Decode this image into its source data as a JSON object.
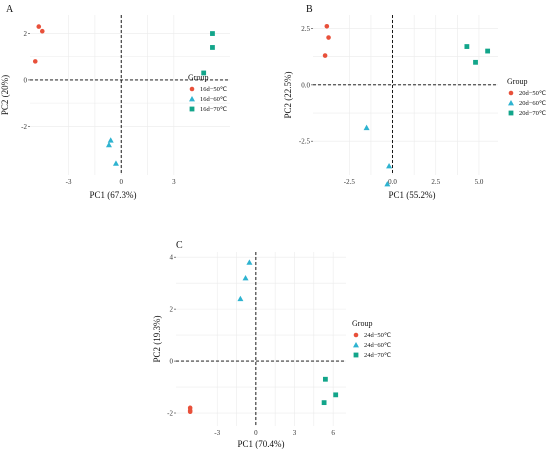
{
  "colors": {
    "c50": "#e8503a",
    "c60": "#2eb3d0",
    "c70": "#12a58a"
  },
  "chart_data": [
    {
      "type": "scatter",
      "panel": "A",
      "xlabel": "PC1 (67.3%)",
      "ylabel": "PC2 (20%)",
      "xlim": [
        -5.2,
        6.2
      ],
      "ylim": [
        -4.1,
        2.8
      ],
      "xticks": [
        -3,
        0,
        3
      ],
      "yticks": [
        -2,
        0,
        2
      ],
      "legend_title": "Group",
      "legend_position": "right",
      "series": [
        {
          "name": "16d−50℃",
          "marker": "circle",
          "color": "#e8503a",
          "points": [
            [
              -4.7,
              2.3
            ],
            [
              -4.5,
              2.1
            ],
            [
              -4.9,
              0.8
            ]
          ]
        },
        {
          "name": "16d−60℃",
          "marker": "triangle",
          "color": "#2eb3d0",
          "points": [
            [
              -0.6,
              -2.6
            ],
            [
              -0.7,
              -2.8
            ],
            [
              -0.3,
              -3.6
            ]
          ]
        },
        {
          "name": "16d−70℃",
          "marker": "square",
          "color": "#12a58a",
          "points": [
            [
              5.2,
              2.0
            ],
            [
              5.2,
              1.4
            ],
            [
              4.7,
              0.3
            ]
          ]
        }
      ]
    },
    {
      "type": "scatter",
      "panel": "B",
      "xlabel": "PC1 (55.2%)",
      "ylabel": "PC2 (22.5%)",
      "xlim": [
        -4.6,
        6.1
      ],
      "ylim": [
        -4.0,
        3.1
      ],
      "xticks": [
        -2.5,
        0.0,
        2.5,
        5.0
      ],
      "xtick_labels": [
        "-2.5",
        "0.0",
        "2.5",
        "5.0"
      ],
      "yticks": [
        -2.5,
        0.0,
        2.5
      ],
      "ytick_labels": [
        "-2.5",
        "0.0",
        "2.5"
      ],
      "legend_title": "Group",
      "legend_position": "right",
      "series": [
        {
          "name": "20d−50℃",
          "marker": "circle",
          "color": "#e8503a",
          "points": [
            [
              -3.8,
              2.6
            ],
            [
              -3.7,
              2.1
            ],
            [
              -3.9,
              1.3
            ]
          ]
        },
        {
          "name": "20d−60℃",
          "marker": "triangle",
          "color": "#2eb3d0",
          "points": [
            [
              -1.5,
              -1.9
            ],
            [
              -0.2,
              -3.6
            ],
            [
              -0.3,
              -4.4
            ]
          ]
        },
        {
          "name": "20d−70℃",
          "marker": "square",
          "color": "#12a58a",
          "points": [
            [
              4.3,
              1.7
            ],
            [
              5.5,
              1.5
            ],
            [
              4.8,
              1.0
            ]
          ]
        }
      ]
    },
    {
      "type": "scatter",
      "panel": "C",
      "xlabel": "PC1 (70.4%)",
      "ylabel": "PC2 (19.3%)",
      "xlim": [
        -6.2,
        7.0
      ],
      "ylim": [
        -2.5,
        4.2
      ],
      "xticks": [
        -3,
        0,
        3,
        6
      ],
      "yticks": [
        -2,
        0,
        2,
        4
      ],
      "legend_title": "Group",
      "legend_position": "right",
      "series": [
        {
          "name": "24d−50℃",
          "marker": "circle",
          "color": "#e8503a",
          "points": [
            [
              -5.1,
              -1.8
            ],
            [
              -5.1,
              -1.9
            ],
            [
              -5.1,
              -1.95
            ]
          ]
        },
        {
          "name": "24d−60℃",
          "marker": "triangle",
          "color": "#2eb3d0",
          "points": [
            [
              -0.5,
              3.8
            ],
            [
              -0.8,
              3.2
            ],
            [
              -1.2,
              2.4
            ]
          ]
        },
        {
          "name": "24d−70℃",
          "marker": "square",
          "color": "#12a58a",
          "points": [
            [
              5.4,
              -0.7
            ],
            [
              6.2,
              -1.3
            ],
            [
              5.3,
              -1.6
            ]
          ]
        }
      ]
    }
  ]
}
